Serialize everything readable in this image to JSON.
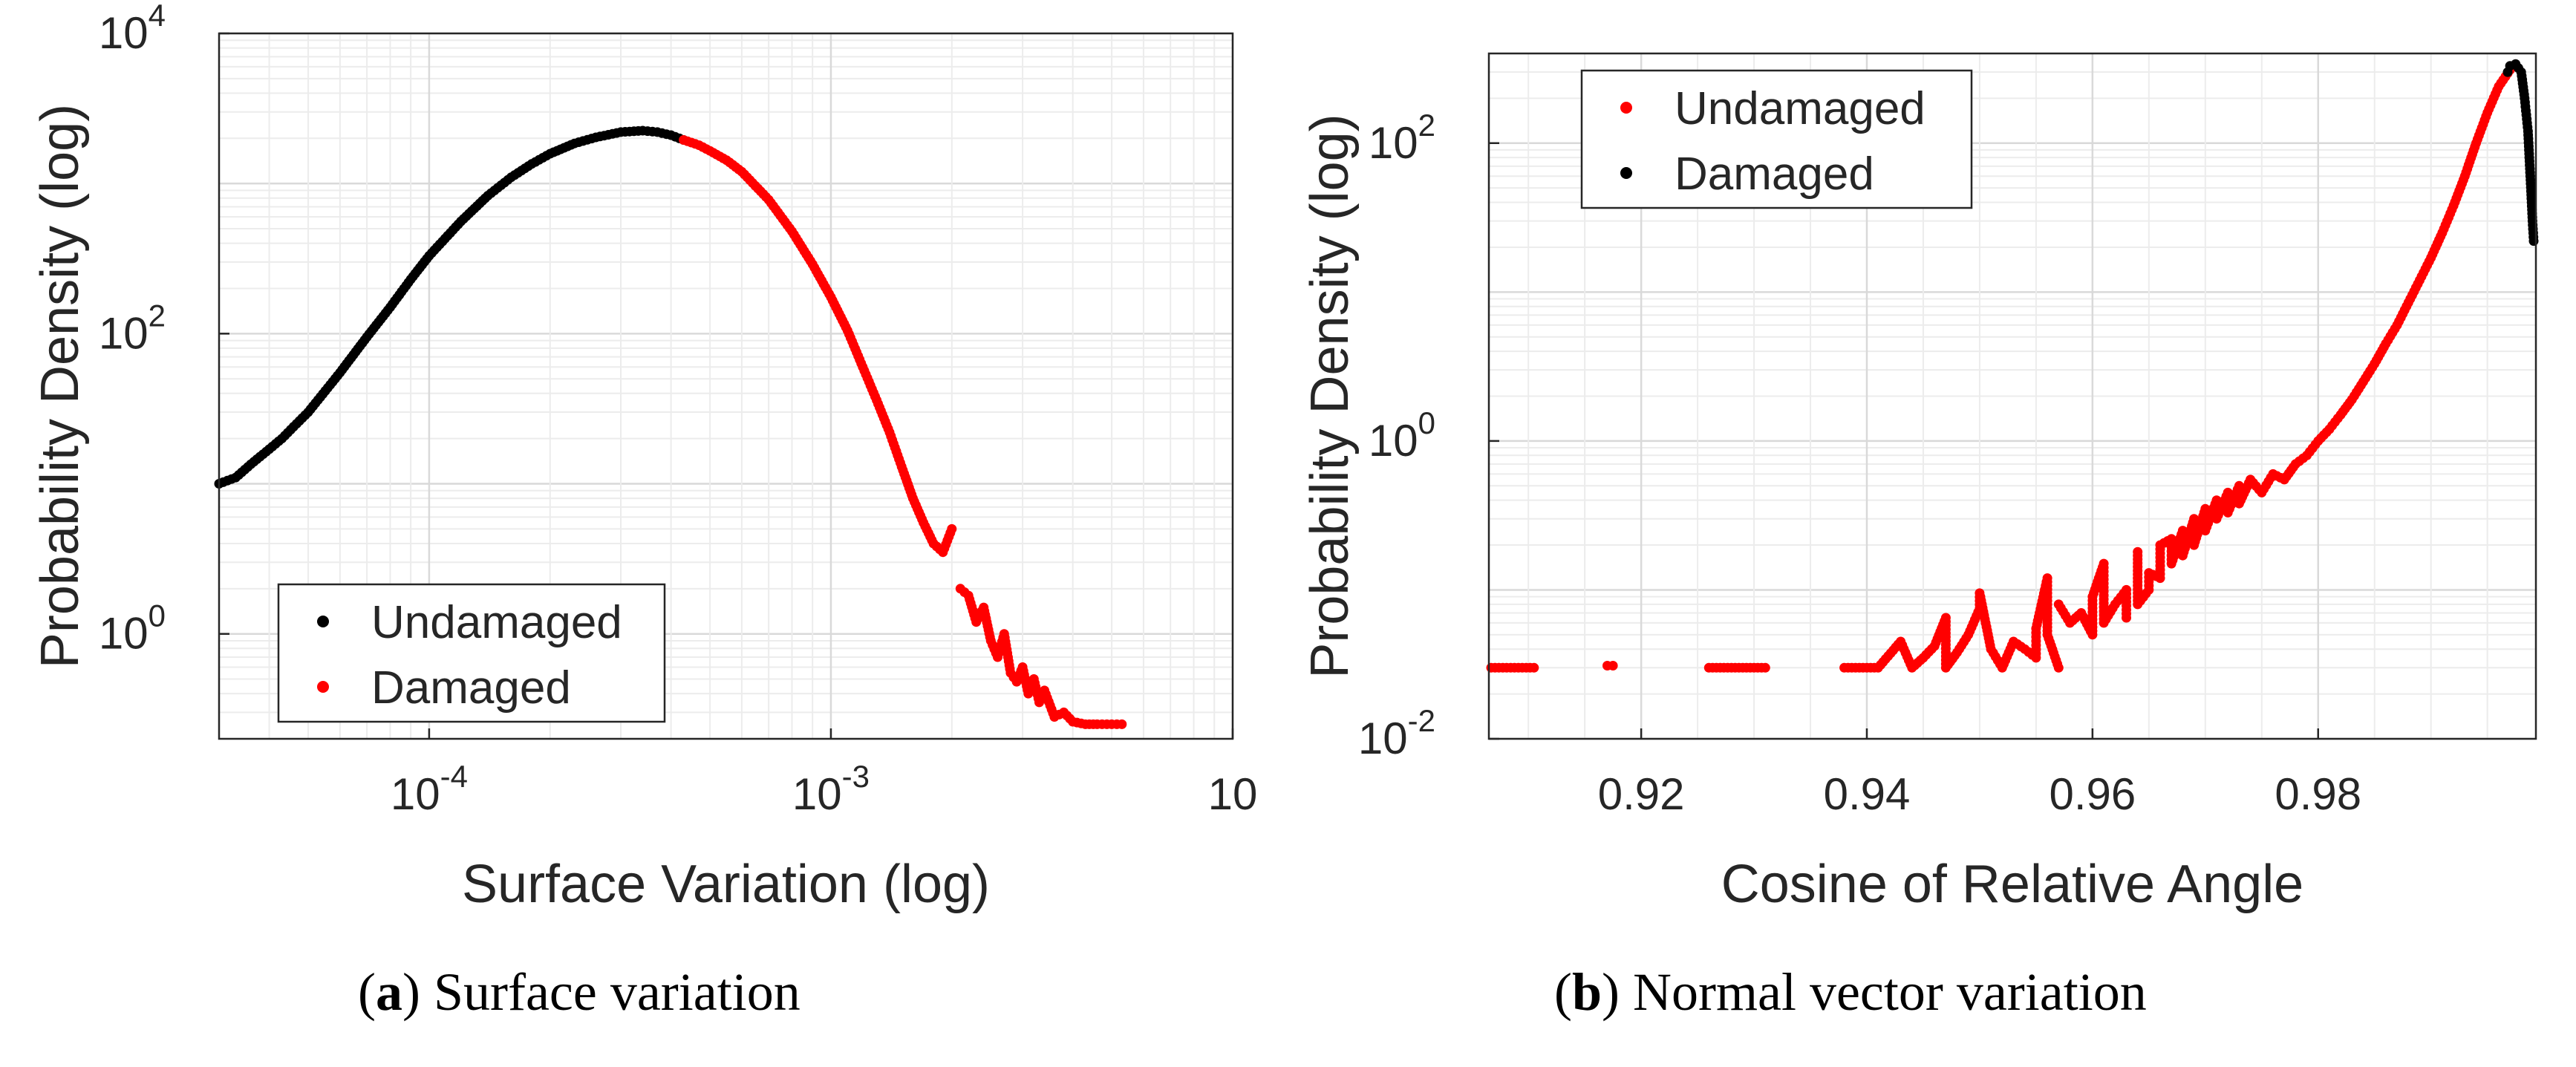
{
  "chart_data": [
    {
      "type": "scatter",
      "xscale": "log",
      "yscale": "log",
      "title": "",
      "xlabel": "Surface Variation (log)",
      "ylabel": "Probability Density (log)",
      "xlim": [
        3e-05,
        0.01
      ],
      "ylim": [
        0.2,
        10000
      ],
      "xticks": [
        {
          "value": 0.0001,
          "base": "10",
          "exp": "-4"
        },
        {
          "value": 0.001,
          "base": "10",
          "exp": "-3"
        },
        {
          "value": 0.01,
          "base": "10",
          "exp": ""
        }
      ],
      "yticks": [
        {
          "value": 1,
          "base": "10",
          "exp": "0"
        },
        {
          "value": 100,
          "base": "10",
          "exp": "2"
        },
        {
          "value": 10000,
          "base": "10",
          "exp": "4"
        }
      ],
      "grid": true,
      "legend_position": "bottom-left",
      "series": [
        {
          "name": "Undamaged",
          "color": "#000000",
          "points": [
            [
              3e-05,
              10
            ],
            [
              3.3e-05,
              11
            ],
            [
              3.6e-05,
              13.5
            ],
            [
              4e-05,
              17
            ],
            [
              4.3e-05,
              20
            ],
            [
              4.6e-05,
              24
            ],
            [
              5e-05,
              30
            ],
            [
              6e-05,
              55
            ],
            [
              7e-05,
              95
            ],
            [
              8e-05,
              150
            ],
            [
              9e-05,
              230
            ],
            [
              0.0001,
              330
            ],
            [
              0.00012,
              560
            ],
            [
              0.00014,
              830
            ],
            [
              0.00016,
              1100
            ],
            [
              0.00018,
              1350
            ],
            [
              0.0002,
              1580
            ],
            [
              0.00023,
              1850
            ],
            [
              0.00026,
              2030
            ],
            [
              0.0003,
              2200
            ],
            [
              0.00034,
              2250
            ],
            [
              0.00037,
              2200
            ],
            [
              0.0004,
              2100
            ],
            [
              0.00043,
              1950
            ]
          ]
        },
        {
          "name": "Damaged",
          "color": "#ff0000",
          "points": [
            [
              0.00043,
              1950
            ],
            [
              0.00047,
              1800
            ],
            [
              0.0005,
              1650
            ],
            [
              0.00055,
              1430
            ],
            [
              0.0006,
              1200
            ],
            [
              0.0007,
              780
            ],
            [
              0.0008,
              480
            ],
            [
              0.0009,
              290
            ],
            [
              0.001,
              175
            ],
            [
              0.0011,
              105
            ],
            [
              0.0012,
              60
            ],
            [
              0.0013,
              36
            ],
            [
              0.0014,
              22
            ],
            [
              0.0015,
              13
            ],
            [
              0.0016,
              8
            ],
            [
              0.0017,
              5.5
            ],
            [
              0.0018,
              4
            ],
            [
              0.0019,
              3.5
            ],
            [
              0.002,
              5
            ],
            [
              0.0021,
              2
            ],
            [
              0.0022,
              1.8
            ],
            [
              0.0023,
              1.2
            ],
            [
              0.0024,
              1.5
            ],
            [
              0.0025,
              0.9
            ],
            [
              0.0026,
              0.7
            ],
            [
              0.0027,
              1.0
            ],
            [
              0.0028,
              0.55
            ],
            [
              0.0029,
              0.48
            ],
            [
              0.003,
              0.6
            ],
            [
              0.0031,
              0.4
            ],
            [
              0.0032,
              0.5
            ],
            [
              0.0033,
              0.35
            ],
            [
              0.0034,
              0.42
            ],
            [
              0.0036,
              0.28
            ],
            [
              0.0038,
              0.3
            ],
            [
              0.004,
              0.26
            ],
            [
              0.0043,
              0.25
            ],
            [
              0.0046,
              0.25
            ],
            [
              0.005,
              0.25
            ],
            [
              0.0053,
              0.25
            ]
          ]
        }
      ]
    },
    {
      "type": "scatter",
      "xscale": "linear",
      "yscale": "log",
      "title": "",
      "xlabel": "Cosine of Relative Angle",
      "ylabel": "Probability Density (log)",
      "xlim": [
        0.9065,
        0.9993
      ],
      "ylim": [
        0.01,
        400
      ],
      "xticks": [
        {
          "value": 0.92,
          "label": "0.92"
        },
        {
          "value": 0.94,
          "label": "0.94"
        },
        {
          "value": 0.96,
          "label": "0.96"
        },
        {
          "value": 0.98,
          "label": "0.98"
        }
      ],
      "yticks": [
        {
          "value": 0.01,
          "base": "10",
          "exp": "-2"
        },
        {
          "value": 1,
          "base": "10",
          "exp": "0"
        },
        {
          "value": 100,
          "base": "10",
          "exp": "2"
        }
      ],
      "grid": true,
      "legend_position": "top-left",
      "series": [
        {
          "name": "Undamaged",
          "color": "#ff0000",
          "points": [
            [
              0.9067,
              0.03
            ],
            [
              0.9105,
              0.03
            ],
            [
              0.917,
              0.031
            ],
            [
              0.9175,
              0.031
            ],
            [
              0.926,
              0.03
            ],
            [
              0.929,
              0.03
            ],
            [
              0.931,
              0.03
            ],
            [
              0.938,
              0.03
            ],
            [
              0.941,
              0.03
            ],
            [
              0.943,
              0.045
            ],
            [
              0.944,
              0.03
            ],
            [
              0.945,
              0.035
            ],
            [
              0.946,
              0.042
            ],
            [
              0.947,
              0.065
            ],
            [
              0.947,
              0.03
            ],
            [
              0.948,
              0.038
            ],
            [
              0.949,
              0.05
            ],
            [
              0.95,
              0.075
            ],
            [
              0.95,
              0.095
            ],
            [
              0.951,
              0.04
            ],
            [
              0.952,
              0.03
            ],
            [
              0.953,
              0.045
            ],
            [
              0.954,
              0.04
            ],
            [
              0.955,
              0.035
            ],
            [
              0.955,
              0.055
            ],
            [
              0.956,
              0.12
            ],
            [
              0.956,
              0.05
            ],
            [
              0.957,
              0.03
            ],
            [
              0.957,
              0.08
            ],
            [
              0.958,
              0.06
            ],
            [
              0.959,
              0.07
            ],
            [
              0.96,
              0.05
            ],
            [
              0.96,
              0.09
            ],
            [
              0.961,
              0.15
            ],
            [
              0.961,
              0.06
            ],
            [
              0.962,
              0.08
            ],
            [
              0.963,
              0.1
            ],
            [
              0.963,
              0.065
            ],
            [
              0.964,
              0.18
            ],
            [
              0.964,
              0.08
            ],
            [
              0.965,
              0.1
            ],
            [
              0.965,
              0.13
            ],
            [
              0.966,
              0.12
            ],
            [
              0.966,
              0.2
            ],
            [
              0.967,
              0.22
            ],
            [
              0.967,
              0.15
            ],
            [
              0.968,
              0.25
            ],
            [
              0.968,
              0.17
            ],
            [
              0.969,
              0.3
            ],
            [
              0.969,
              0.2
            ],
            [
              0.97,
              0.35
            ],
            [
              0.97,
              0.25
            ],
            [
              0.971,
              0.4
            ],
            [
              0.971,
              0.3
            ],
            [
              0.972,
              0.45
            ],
            [
              0.972,
              0.33
            ],
            [
              0.973,
              0.5
            ],
            [
              0.973,
              0.38
            ],
            [
              0.974,
              0.55
            ],
            [
              0.975,
              0.45
            ],
            [
              0.976,
              0.6
            ],
            [
              0.977,
              0.55
            ],
            [
              0.978,
              0.7
            ],
            [
              0.979,
              0.8
            ],
            [
              0.98,
              1.0
            ],
            [
              0.981,
              1.2
            ],
            [
              0.982,
              1.5
            ],
            [
              0.983,
              1.9
            ],
            [
              0.984,
              2.5
            ],
            [
              0.985,
              3.3
            ],
            [
              0.986,
              4.5
            ],
            [
              0.987,
              6
            ],
            [
              0.988,
              8.5
            ],
            [
              0.989,
              12
            ],
            [
              0.99,
              17
            ],
            [
              0.991,
              25
            ],
            [
              0.992,
              38
            ],
            [
              0.993,
              60
            ],
            [
              0.994,
              100
            ],
            [
              0.995,
              160
            ],
            [
              0.996,
              240
            ],
            [
              0.997,
              310
            ]
          ]
        },
        {
          "name": "Damaged",
          "color": "#000000",
          "points": [
            [
              0.9968,
              300
            ],
            [
              0.997,
              330
            ],
            [
              0.9975,
              340
            ],
            [
              0.998,
              300
            ],
            [
              0.9983,
              200
            ],
            [
              0.9986,
              120
            ],
            [
              0.9988,
              60
            ],
            [
              0.999,
              30
            ],
            [
              0.9991,
              22
            ]
          ]
        }
      ]
    }
  ],
  "captions": [
    {
      "letter": "a",
      "open": "(",
      "close": ")",
      "text": " Surface variation"
    },
    {
      "letter": "b",
      "open": "(",
      "close": ")",
      "text": " Normal vector variation"
    }
  ]
}
